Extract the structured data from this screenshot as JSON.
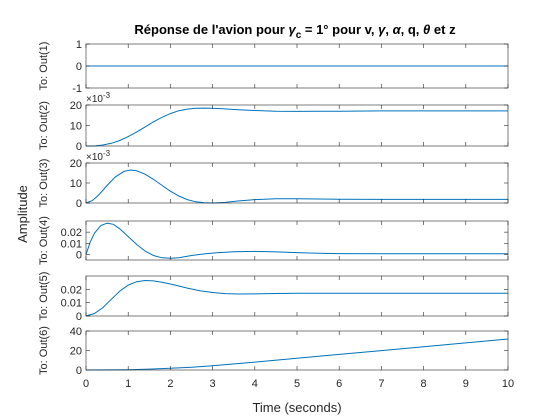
{
  "chart_data": {
    "type": "line",
    "title": "Réponse de l'avion pour γc = 1° pour v, γ, α, q, θ et z",
    "title_parts": [
      "Réponse de l'avion pour ",
      "γ",
      "c",
      " = 1° pour v, ",
      "γ",
      ", ",
      "α",
      ", q, ",
      "θ",
      " et z"
    ],
    "xlabel": "Time (seconds)",
    "ylabel": "Amplitude",
    "xlim": [
      0,
      10
    ],
    "x_ticks": [
      "0",
      "1",
      "2",
      "3",
      "4",
      "5",
      "6",
      "7",
      "8",
      "9",
      "10"
    ],
    "line_color": "#0072BD",
    "grid": false,
    "subplots": [
      {
        "ylabel": "To: Out(1)",
        "ylim": [
          -1,
          1
        ],
        "y_ticks": [
          -1,
          0,
          1
        ],
        "y_tick_labels": [
          "-1",
          "0",
          "1"
        ],
        "exponent": "",
        "x": [
          0,
          10
        ],
        "y": [
          0,
          0
        ]
      },
      {
        "ylabel": "To: Out(2)",
        "ylim": [
          0,
          0.02
        ],
        "y_ticks": [
          0,
          0.01,
          0.02
        ],
        "y_tick_labels": [
          "0",
          "10",
          "20"
        ],
        "exponent": "×10-3",
        "exponent_base": "×10",
        "exponent_power": "-3",
        "x": [
          0,
          0.2,
          0.4,
          0.6,
          0.8,
          1.0,
          1.2,
          1.4,
          1.6,
          1.8,
          2.0,
          2.2,
          2.4,
          2.6,
          2.8,
          3.0,
          3.3,
          3.6,
          4.0,
          4.5,
          5.0,
          5.5,
          6.0,
          7.0,
          8.0,
          9.0,
          10.0
        ],
        "y": [
          0,
          0,
          0.0005,
          0.0013,
          0.0027,
          0.0046,
          0.0068,
          0.0093,
          0.0118,
          0.014,
          0.0158,
          0.0172,
          0.018,
          0.0184,
          0.0185,
          0.0184,
          0.0181,
          0.0177,
          0.0173,
          0.017,
          0.0169,
          0.017,
          0.017,
          0.0171,
          0.0171,
          0.0171,
          0.0171
        ]
      },
      {
        "ylabel": "To: Out(3)",
        "ylim": [
          0,
          0.02
        ],
        "y_ticks": [
          0,
          0.01,
          0.02
        ],
        "y_tick_labels": [
          "0",
          "10",
          "20"
        ],
        "exponent": "×10-3",
        "exponent_base": "×10",
        "exponent_power": "-3",
        "x": [
          0,
          0.15,
          0.3,
          0.5,
          0.7,
          0.9,
          1.05,
          1.2,
          1.4,
          1.6,
          1.8,
          2.0,
          2.2,
          2.4,
          2.6,
          2.8,
          3.0,
          3.3,
          3.6,
          4.0,
          4.5,
          5.0,
          5.5,
          6.0,
          7.0,
          8.0,
          9.0,
          10.0
        ],
        "y": [
          0,
          0.0012,
          0.004,
          0.0088,
          0.0131,
          0.0158,
          0.0165,
          0.0161,
          0.0144,
          0.0118,
          0.0088,
          0.0059,
          0.0035,
          0.0017,
          0.0006,
          0.0001,
          0.0,
          0.0003,
          0.001,
          0.0017,
          0.0021,
          0.0021,
          0.002,
          0.0019,
          0.0018,
          0.0018,
          0.0018,
          0.0018
        ]
      },
      {
        "ylabel": "To: Out(4)",
        "ylim": [
          -0.005,
          0.03
        ],
        "y_ticks": [
          0,
          0.01,
          0.02
        ],
        "y_tick_labels": [
          "0",
          "0.01",
          "0.02"
        ],
        "exponent": "",
        "x": [
          0,
          0.1,
          0.2,
          0.35,
          0.5,
          0.65,
          0.8,
          1.0,
          1.2,
          1.4,
          1.6,
          1.8,
          2.0,
          2.2,
          2.5,
          2.8,
          3.1,
          3.5,
          4.0,
          4.5,
          5.0,
          5.5,
          6.0,
          7.0,
          8.0,
          9.0,
          10.0
        ],
        "y": [
          0,
          0.011,
          0.019,
          0.026,
          0.028,
          0.027,
          0.023,
          0.016,
          0.009,
          0.003,
          -0.001,
          -0.003,
          -0.0035,
          -0.003,
          -0.001,
          0.0005,
          0.0015,
          0.0024,
          0.0027,
          0.0023,
          0.0016,
          0.001,
          0.0007,
          0.0006,
          0.0006,
          0.0006,
          0.0006
        ]
      },
      {
        "ylabel": "To: Out(5)",
        "ylim": [
          0,
          0.03
        ],
        "y_ticks": [
          0,
          0.01,
          0.02
        ],
        "y_tick_labels": [
          "0",
          "0.01",
          "0.02"
        ],
        "exponent": "",
        "x": [
          0,
          0.2,
          0.4,
          0.6,
          0.8,
          1.0,
          1.2,
          1.4,
          1.6,
          1.8,
          2.0,
          2.2,
          2.4,
          2.7,
          3.0,
          3.3,
          3.6,
          4.0,
          4.5,
          5.0,
          5.5,
          6.0,
          7.0,
          8.0,
          9.0,
          10.0
        ],
        "y": [
          0,
          0.0019,
          0.0063,
          0.0125,
          0.0187,
          0.0232,
          0.0257,
          0.0266,
          0.0263,
          0.0253,
          0.024,
          0.0225,
          0.0209,
          0.019,
          0.0176,
          0.0168,
          0.0165,
          0.0166,
          0.0169,
          0.0171,
          0.0171,
          0.0171,
          0.0171,
          0.0171,
          0.0171,
          0.0171
        ]
      },
      {
        "ylabel": "To: Out(6)",
        "ylim": [
          0,
          40
        ],
        "y_ticks": [
          0,
          20,
          40
        ],
        "y_tick_labels": [
          "0",
          "20",
          "40"
        ],
        "exponent": "",
        "x": [
          0,
          0.5,
          1.0,
          1.5,
          2.0,
          2.5,
          3.0,
          4.0,
          5.0,
          6.0,
          7.0,
          8.0,
          9.0,
          10.0
        ],
        "y": [
          0,
          0.06,
          0.35,
          0.95,
          1.8,
          2.9,
          4.3,
          8.1,
          12.0,
          16.0,
          19.9,
          23.9,
          27.8,
          31.8
        ]
      }
    ]
  }
}
